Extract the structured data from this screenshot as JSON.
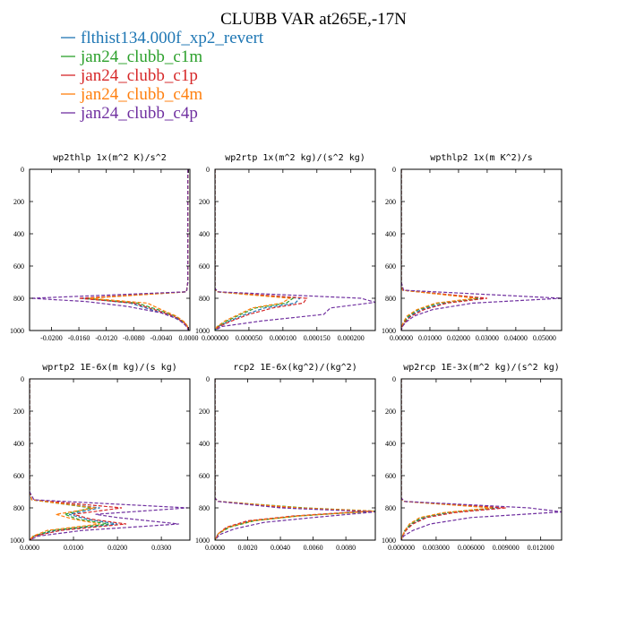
{
  "figure_title": "CLUBB VAR at265E,-17N",
  "legend": [
    {
      "label": "flthist134.000f_xp2_revert",
      "color": "#1f77b4"
    },
    {
      "label": "jan24_clubb_c1m",
      "color": "#2ca02c"
    },
    {
      "label": "jan24_clubb_c1p",
      "color": "#d62728"
    },
    {
      "label": "jan24_clubb_c4m",
      "color": "#ff7f0e"
    },
    {
      "label": "jan24_clubb_c4p",
      "color": "#7030a0"
    }
  ],
  "chart_data": [
    {
      "type": "line",
      "title": "wp2thlp  1x(m^2 K)/s^2",
      "xlim": [
        -0.0232,
        0.0002
      ],
      "ylim": [
        1000,
        0
      ],
      "x_ticks": [
        -0.02,
        -0.016,
        -0.012,
        -0.008,
        -0.004,
        0.0
      ],
      "x_tick_labels": [
        "-0.0200",
        "-0.0160",
        "-0.0120",
        "-0.0080",
        "-0.0040",
        "0.0000"
      ],
      "y_ticks": [
        0,
        200,
        400,
        600,
        800,
        1000
      ],
      "y_tick_labels": [
        "0",
        "200",
        "400",
        "600",
        "800",
        "1000"
      ],
      "series": [
        {
          "pressure": [
            0,
            700,
            760,
            800,
            830,
            870,
            910,
            950,
            970,
            1000
          ],
          "values": [
            -0.0001,
            -0.0001,
            -0.0003,
            -0.0155,
            -0.0085,
            -0.0055,
            -0.0025,
            -0.0008,
            -0.0002,
            0.0
          ]
        },
        {
          "pressure": [
            0,
            700,
            760,
            800,
            830,
            870,
            910,
            950,
            970,
            1000
          ],
          "values": [
            -0.0001,
            -0.0001,
            -0.0003,
            -0.015,
            -0.0075,
            -0.0045,
            -0.002,
            -0.0006,
            -0.0002,
            0.0
          ]
        },
        {
          "pressure": [
            0,
            700,
            760,
            800,
            830,
            870,
            910,
            950,
            970,
            1000
          ],
          "values": [
            -0.0001,
            -0.0001,
            -0.0003,
            -0.016,
            -0.008,
            -0.005,
            -0.0022,
            -0.0007,
            -0.0002,
            0.0
          ]
        },
        {
          "pressure": [
            0,
            700,
            760,
            800,
            830,
            870,
            910,
            950,
            970,
            1000
          ],
          "values": [
            -0.0001,
            -0.0001,
            -0.0003,
            -0.0145,
            -0.006,
            -0.004,
            -0.0018,
            -0.0005,
            -0.0002,
            0.0
          ]
        },
        {
          "pressure": [
            0,
            700,
            760,
            800,
            820,
            850,
            890,
            930,
            970,
            1000
          ],
          "values": [
            -0.0001,
            -0.0001,
            -0.0003,
            -0.023,
            -0.015,
            -0.009,
            -0.004,
            -0.0015,
            -0.0004,
            0.0
          ]
        }
      ]
    },
    {
      "type": "line",
      "title": "wp2rtp  1x(m^2 kg)/(s^2 kg)",
      "xlim": [
        0.0,
        0.000236
      ],
      "ylim": [
        1000,
        0
      ],
      "x_ticks": [
        0.0,
        5e-05,
        0.0001,
        0.00015,
        0.0002
      ],
      "x_tick_labels": [
        "0.000000",
        "0.000050",
        "0.000100",
        "0.000150",
        "0.000200"
      ],
      "y_ticks": [
        0,
        200,
        400,
        600,
        800,
        1000
      ],
      "y_tick_labels": [
        "0",
        "200",
        "400",
        "600",
        "800",
        "1000"
      ],
      "series": [
        {
          "pressure": [
            0,
            740,
            760,
            800,
            830,
            860,
            900,
            940,
            975,
            1000
          ],
          "values": [
            0.0,
            0.0,
            3e-06,
            0.000125,
            0.000118,
            7.3e-05,
            4.5e-05,
            2.2e-05,
            5e-06,
            0.0
          ]
        },
        {
          "pressure": [
            0,
            740,
            760,
            800,
            830,
            860,
            900,
            940,
            975,
            1000
          ],
          "values": [
            0.0,
            0.0,
            3e-06,
            0.000115,
            0.000105,
            6e-05,
            3.8e-05,
            1.8e-05,
            4e-06,
            0.0
          ]
        },
        {
          "pressure": [
            0,
            740,
            760,
            800,
            830,
            860,
            900,
            940,
            975,
            1000
          ],
          "values": [
            0.0,
            0.0,
            3e-06,
            0.000135,
            0.00013,
            8.5e-05,
            5e-05,
            2.5e-05,
            6e-06,
            0.0
          ]
        },
        {
          "pressure": [
            0,
            740,
            760,
            800,
            830,
            860,
            900,
            940,
            975,
            1000
          ],
          "values": [
            0.0,
            0.0,
            3e-06,
            0.00011,
            9.8e-05,
            5.5e-05,
            3.5e-05,
            1.5e-05,
            3e-06,
            0.0
          ]
        },
        {
          "pressure": [
            0,
            740,
            760,
            800,
            825,
            860,
            900,
            940,
            975,
            1000
          ],
          "values": [
            0.0,
            0.0,
            5e-06,
            0.000215,
            0.000236,
            0.00017,
            0.00016,
            7e-05,
            1e-05,
            0.0
          ]
        }
      ]
    },
    {
      "type": "line",
      "title": "wpthlp2  1x(m K^2)/s",
      "xlim": [
        0.0,
        0.056
      ],
      "ylim": [
        1000,
        0
      ],
      "x_ticks": [
        0.0,
        0.01,
        0.02,
        0.03,
        0.04,
        0.05
      ],
      "x_tick_labels": [
        "0.00000",
        "0.01000",
        "0.02000",
        "0.03000",
        "0.04000",
        "0.05000"
      ],
      "y_ticks": [
        0,
        200,
        400,
        600,
        800,
        1000
      ],
      "y_tick_labels": [
        "0",
        "200",
        "400",
        "600",
        "800",
        "1000"
      ],
      "series": [
        {
          "pressure": [
            0,
            700,
            750,
            800,
            830,
            870,
            910,
            950,
            975,
            1000
          ],
          "values": [
            0.0,
            0.0,
            0.0005,
            0.029,
            0.015,
            0.007,
            0.003,
            0.001,
            0.0003,
            0.0
          ]
        },
        {
          "pressure": [
            0,
            700,
            750,
            800,
            830,
            870,
            910,
            950,
            975,
            1000
          ],
          "values": [
            0.0,
            0.0,
            0.0005,
            0.027,
            0.013,
            0.006,
            0.0025,
            0.0008,
            0.0002,
            0.0
          ]
        },
        {
          "pressure": [
            0,
            700,
            750,
            800,
            830,
            870,
            910,
            950,
            975,
            1000
          ],
          "values": [
            0.0,
            0.0,
            0.0005,
            0.03,
            0.016,
            0.008,
            0.0035,
            0.0012,
            0.0003,
            0.0
          ]
        },
        {
          "pressure": [
            0,
            700,
            750,
            800,
            830,
            870,
            910,
            950,
            975,
            1000
          ],
          "values": [
            0.0,
            0.0,
            0.0005,
            0.026,
            0.012,
            0.0055,
            0.002,
            0.0007,
            0.0002,
            0.0
          ]
        },
        {
          "pressure": [
            0,
            700,
            750,
            800,
            830,
            870,
            910,
            950,
            975,
            1000
          ],
          "values": [
            0.0,
            0.0,
            0.0008,
            0.056,
            0.025,
            0.011,
            0.0045,
            0.0015,
            0.0004,
            0.0
          ]
        }
      ]
    },
    {
      "type": "line",
      "title": "wprtp2  1E-6x(m kg)/(s kg)",
      "xlim": [
        0.0,
        0.0365
      ],
      "ylim": [
        1000,
        0
      ],
      "x_ticks": [
        0.0,
        0.01,
        0.02,
        0.03
      ],
      "x_tick_labels": [
        "0.0000",
        "0.0100",
        "0.0200",
        "0.0300"
      ],
      "y_ticks": [
        0,
        200,
        400,
        600,
        800,
        1000
      ],
      "y_tick_labels": [
        "0",
        "200",
        "400",
        "600",
        "800",
        "1000"
      ],
      "series": [
        {
          "pressure": [
            0,
            700,
            750,
            800,
            840,
            870,
            900,
            940,
            975,
            1000
          ],
          "values": [
            0.0,
            0.0,
            0.0005,
            0.016,
            0.009,
            0.013,
            0.02,
            0.006,
            0.001,
            0.0
          ]
        },
        {
          "pressure": [
            0,
            700,
            750,
            800,
            840,
            870,
            900,
            940,
            975,
            1000
          ],
          "values": [
            0.0,
            0.0,
            0.0005,
            0.014,
            0.008,
            0.011,
            0.018,
            0.005,
            0.001,
            0.0
          ]
        },
        {
          "pressure": [
            0,
            700,
            750,
            800,
            840,
            870,
            900,
            940,
            975,
            1000
          ],
          "values": [
            0.0,
            0.0,
            0.0005,
            0.021,
            0.01,
            0.014,
            0.022,
            0.007,
            0.0012,
            0.0
          ]
        },
        {
          "pressure": [
            0,
            700,
            750,
            800,
            840,
            870,
            900,
            940,
            975,
            1000
          ],
          "values": [
            0.0,
            0.0,
            0.0005,
            0.015,
            0.006,
            0.01,
            0.016,
            0.004,
            0.0008,
            0.0
          ]
        },
        {
          "pressure": [
            0,
            700,
            750,
            800,
            840,
            860,
            900,
            940,
            975,
            1000
          ],
          "values": [
            0.0,
            0.0,
            0.001,
            0.036,
            0.015,
            0.02,
            0.034,
            0.012,
            0.002,
            0.0
          ]
        }
      ]
    },
    {
      "type": "line",
      "title": "rcp2  1E-6x(kg^2)/(kg^2)",
      "xlim": [
        0.0,
        0.0098
      ],
      "ylim": [
        1000,
        0
      ],
      "x_ticks": [
        0.0,
        0.002,
        0.004,
        0.006,
        0.008
      ],
      "x_tick_labels": [
        "0.0000",
        "0.0020",
        "0.0040",
        "0.0060",
        "0.0080"
      ],
      "y_ticks": [
        0,
        200,
        400,
        600,
        800,
        1000
      ],
      "y_tick_labels": [
        "0",
        "200",
        "400",
        "600",
        "800",
        "1000"
      ],
      "series": [
        {
          "pressure": [
            0,
            740,
            760,
            800,
            820,
            850,
            880,
            920,
            960,
            1000
          ],
          "values": [
            0.0,
            0.0,
            0.0002,
            0.005,
            0.0096,
            0.005,
            0.0022,
            0.0008,
            0.0002,
            0.0
          ]
        },
        {
          "pressure": [
            0,
            740,
            760,
            800,
            820,
            850,
            880,
            920,
            960,
            1000
          ],
          "values": [
            0.0,
            0.0,
            0.0002,
            0.0055,
            0.0098,
            0.0052,
            0.0024,
            0.0009,
            0.0002,
            0.0
          ]
        },
        {
          "pressure": [
            0,
            740,
            760,
            800,
            820,
            850,
            880,
            920,
            960,
            1000
          ],
          "values": [
            0.0,
            0.0,
            0.0002,
            0.0045,
            0.0094,
            0.0048,
            0.002,
            0.0007,
            0.0002,
            0.0
          ]
        },
        {
          "pressure": [
            0,
            740,
            760,
            800,
            820,
            850,
            880,
            920,
            960,
            1000
          ],
          "values": [
            0.0,
            0.0,
            0.0002,
            0.0052,
            0.0097,
            0.0051,
            0.0023,
            0.0008,
            0.0002,
            0.0
          ]
        },
        {
          "pressure": [
            0,
            740,
            760,
            800,
            825,
            860,
            890,
            930,
            965,
            1000
          ],
          "values": [
            0.0,
            0.0,
            0.0002,
            0.004,
            0.0098,
            0.006,
            0.003,
            0.0012,
            0.0003,
            0.0
          ]
        }
      ]
    },
    {
      "type": "line",
      "title": "wp2rcp  1E-3x(m^2 kg)/(s^2 kg)",
      "xlim": [
        0.0,
        0.0138
      ],
      "ylim": [
        1000,
        0
      ],
      "x_ticks": [
        0.0,
        0.003,
        0.006,
        0.009,
        0.012
      ],
      "x_tick_labels": [
        "0.000000",
        "0.003000",
        "0.006000",
        "0.009000",
        "0.012000"
      ],
      "y_ticks": [
        0,
        200,
        400,
        600,
        800,
        1000
      ],
      "y_tick_labels": [
        "0",
        "200",
        "400",
        "600",
        "800",
        "1000"
      ],
      "series": [
        {
          "pressure": [
            0,
            740,
            760,
            800,
            830,
            860,
            900,
            940,
            975,
            1000
          ],
          "values": [
            0.0,
            0.0,
            0.0002,
            0.0085,
            0.0042,
            0.002,
            0.0009,
            0.0004,
            0.0001,
            0.0
          ]
        },
        {
          "pressure": [
            0,
            740,
            760,
            800,
            830,
            860,
            900,
            940,
            975,
            1000
          ],
          "values": [
            0.0,
            0.0,
            0.0002,
            0.008,
            0.0038,
            0.0018,
            0.0008,
            0.0003,
            0.0001,
            0.0
          ]
        },
        {
          "pressure": [
            0,
            740,
            760,
            800,
            830,
            860,
            900,
            940,
            975,
            1000
          ],
          "values": [
            0.0,
            0.0,
            0.0002,
            0.009,
            0.0045,
            0.0022,
            0.001,
            0.0004,
            0.0001,
            0.0
          ]
        },
        {
          "pressure": [
            0,
            740,
            760,
            800,
            830,
            860,
            900,
            940,
            975,
            1000
          ],
          "values": [
            0.0,
            0.0,
            0.0002,
            0.0078,
            0.0036,
            0.0016,
            0.0007,
            0.0003,
            0.0001,
            0.0
          ]
        },
        {
          "pressure": [
            0,
            740,
            760,
            800,
            825,
            860,
            900,
            940,
            975,
            1000
          ],
          "values": [
            0.0,
            0.0,
            0.0003,
            0.011,
            0.0138,
            0.006,
            0.0025,
            0.001,
            0.0002,
            0.0
          ]
        }
      ]
    }
  ]
}
